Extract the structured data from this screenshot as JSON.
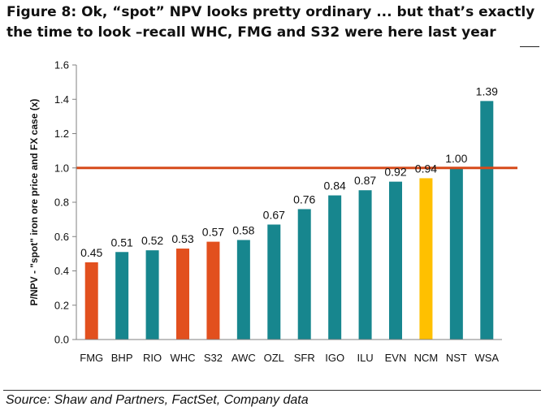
{
  "title": "Figure 8: Ok, “spot” NPV looks pretty ordinary ... but that’s exactly the time to look –recall  WHC, FMG and S32 were here last year",
  "source": "Source: Shaw and Partners, FactSet, Company data",
  "colors": {
    "teal": "#17868E",
    "orange": "#E2501E",
    "yellow": "#FFC000",
    "reference_line": "#D64A1A",
    "axis": "#808080",
    "text": "#111111"
  },
  "chart_data": {
    "type": "bar",
    "ylabel": "P/NPV - \"spot\" iron ore price and FX case (x)",
    "xlabel": "",
    "ylim": [
      0,
      1.6
    ],
    "yticks": [
      "0.0",
      "0.2",
      "0.4",
      "0.6",
      "0.8",
      "1.0",
      "1.2",
      "1.4",
      "1.6"
    ],
    "grid": false,
    "categories": [
      "FMG",
      "BHP",
      "RIO",
      "WHC",
      "S32",
      "AWC",
      "OZL",
      "SFR",
      "IGO",
      "ILU",
      "EVN",
      "NCM",
      "NST",
      "WSA"
    ],
    "values": [
      0.45,
      0.51,
      0.52,
      0.53,
      0.57,
      0.58,
      0.67,
      0.76,
      0.84,
      0.87,
      0.92,
      0.94,
      1.0,
      1.39
    ],
    "data_labels": [
      "0.45",
      "0.51",
      "0.52",
      "0.53",
      "0.57",
      "0.58",
      "0.67",
      "0.76",
      "0.84",
      "0.87",
      "0.92",
      "0.94",
      "1.00",
      "1.39"
    ],
    "bar_colors": [
      "#E2501E",
      "#17868E",
      "#17868E",
      "#E2501E",
      "#E2501E",
      "#17868E",
      "#17868E",
      "#17868E",
      "#17868E",
      "#17868E",
      "#17868E",
      "#FFC000",
      "#17868E",
      "#17868E"
    ],
    "reference_line": {
      "y": 1.0,
      "color": "#D64A1A"
    }
  }
}
